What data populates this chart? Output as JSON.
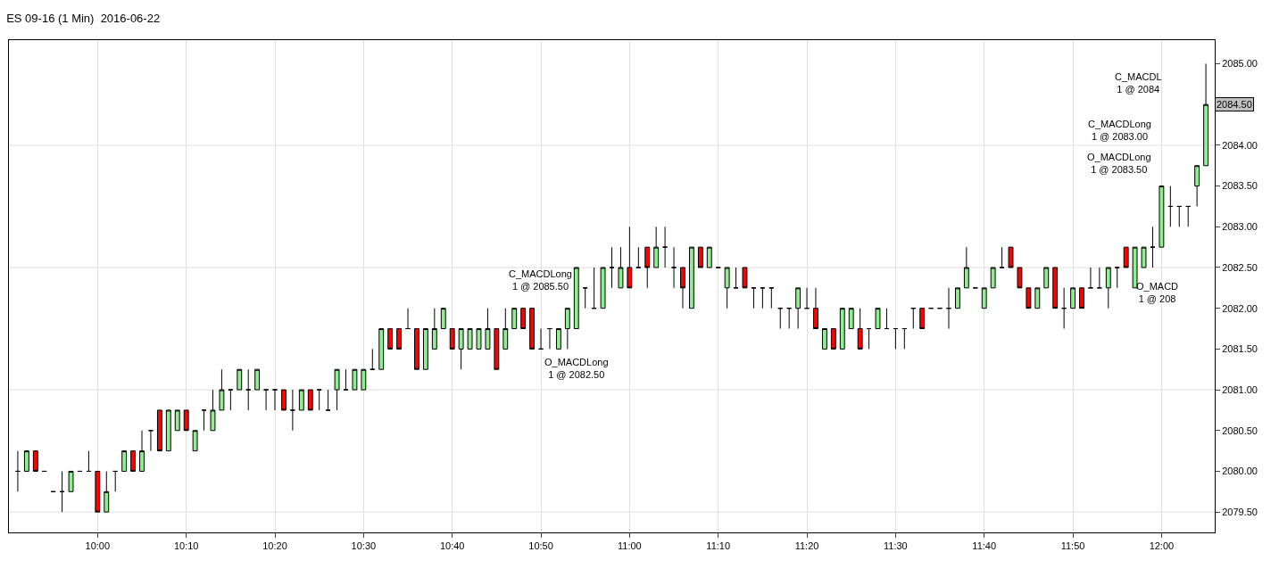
{
  "chart_data": {
    "type": "candlestick",
    "title": "ES 09-16 (1 Min)  2016-06-22",
    "colors": [
      "#000000",
      "#90ee90",
      "#ff0000",
      "#000000",
      "#000000",
      "#000000",
      "#90ee90",
      "#000000",
      "#000000",
      "#ff0000",
      "#90ee90",
      "#000000",
      "#90ee90",
      "#ff0000",
      "#90ee90",
      "#000000",
      "#ff0000",
      "#90ee90",
      "#90ee90",
      "#ff0000",
      "#90ee90",
      "#000000",
      "#90ee90",
      "#90ee90",
      "#000000",
      "#90ee90",
      "#000000",
      "#90ee90",
      "#000000",
      "#000000",
      "#ff0000",
      "#000000",
      "#90ee90",
      "#ff0000",
      "#000000",
      "#000000",
      "#90ee90",
      "#000000",
      "#90ee90",
      "#90ee90",
      "#000000",
      "#90ee90",
      "#ff0000",
      "#ff0000",
      "#000000",
      "#ff0000",
      "#90ee90",
      "#90ee90",
      "#90ee90",
      "#ff0000",
      "#90ee90",
      "#90ee90",
      "#90ee90",
      "#90ee90",
      "#ff0000",
      "#90ee90",
      "#90ee90",
      "#ff0000",
      "#ff0000",
      "#000000",
      "#000000",
      "#90ee90",
      "#90ee90",
      "#90ee90",
      "#000000",
      "#000000",
      "#90ee90",
      "#000000",
      "#90ee90",
      "#ff0000",
      "#000000",
      "#ff0000",
      "#90ee90",
      "#000000",
      "#000000",
      "#ff0000",
      "#90ee90",
      "#ff0000",
      "#90ee90",
      "#000000",
      "#90ee90",
      "#000000",
      "#ff0000",
      "#000000",
      "#000000",
      "#000000",
      "#000000",
      "#000000",
      "#90ee90",
      "#000000",
      "#ff0000",
      "#90ee90",
      "#ff0000",
      "#90ee90",
      "#90ee90",
      "#ff0000",
      "#000000",
      "#90ee90",
      "#000000",
      "#000000",
      "#000000",
      "#000000",
      "#ff0000",
      "#000000",
      "#000000",
      "#000000",
      "#90ee90",
      "#90ee90",
      "#000000",
      "#90ee90",
      "#90ee90",
      "#000000",
      "#ff0000",
      "#ff0000",
      "#ff0000",
      "#90ee90",
      "#90ee90",
      "#ff0000",
      "#000000",
      "#90ee90",
      "#ff0000",
      "#000000",
      "#000000",
      "#90ee90",
      "#000000",
      "#ff0000",
      "#90ee90",
      "#90ee90",
      "#000000",
      "#90ee90",
      "#000000",
      "#000000",
      "#000000",
      "#90ee90",
      "#90ee90"
    ],
    "x": [
      "2016-06-22T09:51",
      "2016-06-22T09:52",
      "2016-06-22T09:53",
      "2016-06-22T09:54",
      "2016-06-22T09:55",
      "2016-06-22T09:56",
      "2016-06-22T09:57",
      "2016-06-22T09:58",
      "2016-06-22T09:59",
      "2016-06-22T10:00",
      "2016-06-22T10:01",
      "2016-06-22T10:02",
      "2016-06-22T10:03",
      "2016-06-22T10:04",
      "2016-06-22T10:05",
      "2016-06-22T10:06",
      "2016-06-22T10:07",
      "2016-06-22T10:08",
      "2016-06-22T10:09",
      "2016-06-22T10:10",
      "2016-06-22T10:11",
      "2016-06-22T10:12",
      "2016-06-22T10:13",
      "2016-06-22T10:14",
      "2016-06-22T10:15",
      "2016-06-22T10:16",
      "2016-06-22T10:17",
      "2016-06-22T10:18",
      "2016-06-22T10:19",
      "2016-06-22T10:20",
      "2016-06-22T10:21",
      "2016-06-22T10:22",
      "2016-06-22T10:23",
      "2016-06-22T10:24",
      "2016-06-22T10:25",
      "2016-06-22T10:26",
      "2016-06-22T10:27",
      "2016-06-22T10:28",
      "2016-06-22T10:29",
      "2016-06-22T10:30",
      "2016-06-22T10:31",
      "2016-06-22T10:32",
      "2016-06-22T10:33",
      "2016-06-22T10:34",
      "2016-06-22T10:35",
      "2016-06-22T10:36",
      "2016-06-22T10:37",
      "2016-06-22T10:38",
      "2016-06-22T10:39",
      "2016-06-22T10:40",
      "2016-06-22T10:41",
      "2016-06-22T10:42",
      "2016-06-22T10:43",
      "2016-06-22T10:44",
      "2016-06-22T10:45",
      "2016-06-22T10:46",
      "2016-06-22T10:47",
      "2016-06-22T10:48",
      "2016-06-22T10:49",
      "2016-06-22T10:50",
      "2016-06-22T10:51",
      "2016-06-22T10:52",
      "2016-06-22T10:53",
      "2016-06-22T10:54",
      "2016-06-22T10:55",
      "2016-06-22T10:56",
      "2016-06-22T10:57",
      "2016-06-22T10:58",
      "2016-06-22T10:59",
      "2016-06-22T11:00",
      "2016-06-22T11:01",
      "2016-06-22T11:02",
      "2016-06-22T11:03",
      "2016-06-22T11:04",
      "2016-06-22T11:05",
      "2016-06-22T11:06",
      "2016-06-22T11:07",
      "2016-06-22T11:08",
      "2016-06-22T11:09",
      "2016-06-22T11:10",
      "2016-06-22T11:11",
      "2016-06-22T11:12",
      "2016-06-22T11:13",
      "2016-06-22T11:14",
      "2016-06-22T11:15",
      "2016-06-22T11:16",
      "2016-06-22T11:17",
      "2016-06-22T11:18",
      "2016-06-22T11:19",
      "2016-06-22T11:20",
      "2016-06-22T11:21",
      "2016-06-22T11:22",
      "2016-06-22T11:23",
      "2016-06-22T11:24",
      "2016-06-22T11:25",
      "2016-06-22T11:26",
      "2016-06-22T11:27",
      "2016-06-22T11:28",
      "2016-06-22T11:29",
      "2016-06-22T11:30",
      "2016-06-22T11:31",
      "2016-06-22T11:32",
      "2016-06-22T11:33",
      "2016-06-22T11:34",
      "2016-06-22T11:35",
      "2016-06-22T11:36",
      "2016-06-22T11:37",
      "2016-06-22T11:38",
      "2016-06-22T11:39",
      "2016-06-22T11:40",
      "2016-06-22T11:41",
      "2016-06-22T11:42",
      "2016-06-22T11:43",
      "2016-06-22T11:44",
      "2016-06-22T11:45",
      "2016-06-22T11:46",
      "2016-06-22T11:47",
      "2016-06-22T11:48",
      "2016-06-22T11:49",
      "2016-06-22T11:50",
      "2016-06-22T11:51",
      "2016-06-22T11:52",
      "2016-06-22T11:53",
      "2016-06-22T11:54",
      "2016-06-22T11:55",
      "2016-06-22T11:56",
      "2016-06-22T11:57",
      "2016-06-22T11:58",
      "2016-06-22T11:59",
      "2016-06-22T12:00",
      "2016-06-22T12:01",
      "2016-06-22T12:02",
      "2016-06-22T12:03",
      "2016-06-22T12:04",
      "2016-06-22T12:05"
    ],
    "ohlc": [
      [
        2080,
        2080.25,
        2079.75,
        2080
      ],
      [
        2080,
        2080.25,
        2080,
        2080.25
      ],
      [
        2080.25,
        2080.25,
        2080,
        2080
      ],
      [
        2080,
        2080,
        2080,
        2080
      ],
      [
        2079.75,
        2079.75,
        2079.75,
        2079.75
      ],
      [
        2079.75,
        2080,
        2079.5,
        2079.75
      ],
      [
        2079.75,
        2080,
        2079.75,
        2080
      ],
      [
        2080,
        2080,
        2080,
        2080
      ],
      [
        2080,
        2080.25,
        2080,
        2080
      ],
      [
        2080,
        2080,
        2079.5,
        2079.5
      ],
      [
        2079.5,
        2080,
        2079.5,
        2079.75
      ],
      [
        2080,
        2080,
        2079.75,
        2080
      ],
      [
        2080,
        2080.25,
        2080,
        2080.25
      ],
      [
        2080.25,
        2080.25,
        2080,
        2080
      ],
      [
        2080,
        2080.5,
        2080,
        2080.25
      ],
      [
        2080.5,
        2080.5,
        2080.25,
        2080.5
      ],
      [
        2080.75,
        2080.75,
        2080.25,
        2080.25
      ],
      [
        2080.25,
        2080.75,
        2080.25,
        2080.75
      ],
      [
        2080.5,
        2080.75,
        2080.5,
        2080.75
      ],
      [
        2080.75,
        2080.75,
        2080.5,
        2080.5
      ],
      [
        2080.25,
        2080.5,
        2080.25,
        2080.5
      ],
      [
        2080.75,
        2080.75,
        2080.5,
        2080.75
      ],
      [
        2080.5,
        2081,
        2080.5,
        2080.75
      ],
      [
        2080.75,
        2081.25,
        2080.75,
        2081
      ],
      [
        2081,
        2081,
        2080.75,
        2081
      ],
      [
        2081,
        2081.25,
        2081,
        2081.25
      ],
      [
        2081,
        2081.25,
        2080.75,
        2081
      ],
      [
        2081,
        2081.25,
        2081,
        2081.25
      ],
      [
        2081,
        2081,
        2080.75,
        2081
      ],
      [
        2081,
        2081,
        2080.75,
        2081
      ],
      [
        2081,
        2081,
        2080.75,
        2080.75
      ],
      [
        2080.75,
        2081,
        2080.5,
        2080.75
      ],
      [
        2080.75,
        2081,
        2080.75,
        2081
      ],
      [
        2081,
        2081,
        2080.75,
        2080.75
      ],
      [
        2081,
        2081,
        2080.75,
        2081
      ],
      [
        2080.75,
        2081,
        2080.75,
        2080.75
      ],
      [
        2081,
        2081.25,
        2080.75,
        2081.25
      ],
      [
        2081,
        2081.25,
        2081,
        2081
      ],
      [
        2081,
        2081.25,
        2081,
        2081.25
      ],
      [
        2081,
        2081.25,
        2081,
        2081.25
      ],
      [
        2081.25,
        2081.5,
        2081.25,
        2081.25
      ],
      [
        2081.25,
        2081.75,
        2081.25,
        2081.75
      ],
      [
        2081.75,
        2081.75,
        2081.5,
        2081.5
      ],
      [
        2081.75,
        2081.75,
        2081.5,
        2081.5
      ],
      [
        2081.75,
        2082,
        2081.75,
        2081.75
      ],
      [
        2081.75,
        2081.75,
        2081.25,
        2081.25
      ],
      [
        2081.25,
        2081.75,
        2081.25,
        2081.75
      ],
      [
        2081.5,
        2082,
        2081.5,
        2081.75
      ],
      [
        2081.75,
        2082,
        2081.75,
        2082
      ],
      [
        2081.75,
        2081.75,
        2081.5,
        2081.5
      ],
      [
        2081.5,
        2081.75,
        2081.25,
        2081.75
      ],
      [
        2081.5,
        2081.75,
        2081.5,
        2081.75
      ],
      [
        2081.5,
        2081.75,
        2081.5,
        2081.75
      ],
      [
        2081.5,
        2082,
        2081.5,
        2081.75
      ],
      [
        2081.75,
        2081.75,
        2081.25,
        2081.25
      ],
      [
        2081.5,
        2082,
        2081.5,
        2081.75
      ],
      [
        2081.75,
        2082,
        2081.75,
        2082
      ],
      [
        2082,
        2082,
        2081.75,
        2081.75
      ],
      [
        2082,
        2082,
        2081.5,
        2081.5
      ],
      [
        2081.5,
        2081.75,
        2081.5,
        2081.5
      ],
      [
        2081.75,
        2081.75,
        2081.5,
        2081.75
      ],
      [
        2081.5,
        2081.75,
        2081.5,
        2081.75
      ],
      [
        2081.75,
        2082,
        2081.5,
        2082
      ],
      [
        2081.75,
        2082.5,
        2081.75,
        2082.5
      ],
      [
        2082.25,
        2082.25,
        2082,
        2082.25
      ],
      [
        2082,
        2082.5,
        2082,
        2082
      ],
      [
        2082,
        2082.5,
        2082,
        2082.5
      ],
      [
        2082.5,
        2082.75,
        2082.25,
        2082.5
      ],
      [
        2082.25,
        2082.75,
        2082.25,
        2082.5
      ],
      [
        2082.5,
        2083,
        2082.25,
        2082.25
      ],
      [
        2082.5,
        2082.75,
        2082.5,
        2082.5
      ],
      [
        2082.75,
        2082.75,
        2082.25,
        2082.5
      ],
      [
        2082.5,
        2083,
        2082.5,
        2082.75
      ],
      [
        2082.75,
        2083,
        2082.5,
        2082.75
      ],
      [
        2082.5,
        2082.75,
        2082.25,
        2082.5
      ],
      [
        2082.5,
        2082.5,
        2082,
        2082.25
      ],
      [
        2082,
        2082.75,
        2082,
        2082.75
      ],
      [
        2082.75,
        2082.75,
        2082.5,
        2082.5
      ],
      [
        2082.5,
        2082.75,
        2082.5,
        2082.75
      ],
      [
        2082.5,
        2082.5,
        2082.5,
        2082.5
      ],
      [
        2082.25,
        2082.5,
        2082,
        2082.5
      ],
      [
        2082.25,
        2082.5,
        2082.25,
        2082.25
      ],
      [
        2082.5,
        2082.5,
        2082.25,
        2082.25
      ],
      [
        2082.25,
        2082.25,
        2082,
        2082.25
      ],
      [
        2082.25,
        2082.25,
        2082,
        2082.25
      ],
      [
        2082.25,
        2082.25,
        2082,
        2082.25
      ],
      [
        2082,
        2082,
        2081.75,
        2082
      ],
      [
        2082,
        2082,
        2081.75,
        2082
      ],
      [
        2082,
        2082.25,
        2081.75,
        2082.25
      ],
      [
        2082,
        2082.25,
        2082,
        2082
      ],
      [
        2082,
        2082.25,
        2081.75,
        2081.75
      ],
      [
        2081.5,
        2081.75,
        2081.5,
        2081.75
      ],
      [
        2081.75,
        2081.75,
        2081.5,
        2081.5
      ],
      [
        2081.5,
        2082,
        2081.5,
        2082
      ],
      [
        2081.75,
        2082,
        2081.75,
        2082
      ],
      [
        2081.75,
        2082,
        2081.5,
        2081.5
      ],
      [
        2081.75,
        2081.75,
        2081.5,
        2081.75
      ],
      [
        2081.75,
        2082,
        2081.75,
        2082
      ],
      [
        2081.75,
        2082,
        2081.75,
        2081.75
      ],
      [
        2081.75,
        2081.75,
        2081.5,
        2081.75
      ],
      [
        2081.75,
        2081.75,
        2081.5,
        2081.75
      ],
      [
        2082,
        2082,
        2081.75,
        2082
      ],
      [
        2082,
        2082,
        2081.75,
        2081.75
      ],
      [
        2082,
        2082,
        2082,
        2082
      ],
      [
        2082,
        2082,
        2082,
        2082
      ],
      [
        2082,
        2082.25,
        2081.75,
        2082
      ],
      [
        2082,
        2082.25,
        2082,
        2082.25
      ],
      [
        2082.25,
        2082.75,
        2082.25,
        2082.5
      ],
      [
        2082.25,
        2082.25,
        2082.25,
        2082.25
      ],
      [
        2082,
        2082.25,
        2082,
        2082.25
      ],
      [
        2082.25,
        2082.5,
        2082.25,
        2082.5
      ],
      [
        2082.5,
        2082.75,
        2082.5,
        2082.5
      ],
      [
        2082.75,
        2082.75,
        2082.5,
        2082.5
      ],
      [
        2082.5,
        2082.5,
        2082.25,
        2082.25
      ],
      [
        2082.25,
        2082.25,
        2082,
        2082
      ],
      [
        2082,
        2082.25,
        2082,
        2082.25
      ],
      [
        2082.25,
        2082.5,
        2082.25,
        2082.5
      ],
      [
        2082.5,
        2082.5,
        2082,
        2082
      ],
      [
        2082,
        2082.25,
        2081.75,
        2082
      ],
      [
        2082,
        2082.25,
        2082,
        2082.25
      ],
      [
        2082.25,
        2082.25,
        2082,
        2082
      ],
      [
        2082.25,
        2082.5,
        2082.25,
        2082.25
      ],
      [
        2082.25,
        2082.5,
        2082.25,
        2082.25
      ],
      [
        2082.25,
        2082.5,
        2082,
        2082.5
      ],
      [
        2082.5,
        2082.5,
        2082.25,
        2082.5
      ],
      [
        2082.75,
        2082.75,
        2082.5,
        2082.5
      ],
      [
        2082.25,
        2082.75,
        2082.25,
        2082.75
      ],
      [
        2082.5,
        2082.75,
        2082.5,
        2082.75
      ],
      [
        2082.75,
        2083,
        2082.5,
        2082.75
      ],
      [
        2082.75,
        2083.5,
        2082.75,
        2083.5
      ],
      [
        2083.25,
        2083.5,
        2083,
        2083.25
      ],
      [
        2083.25,
        2083.25,
        2083,
        2083.25
      ],
      [
        2083.25,
        2083.25,
        2083,
        2083.25
      ],
      [
        2083.5,
        2083.75,
        2083.25,
        2083.75
      ],
      [
        2083.75,
        2085,
        2083.75,
        2084.5
      ]
    ],
    "xlim": [
      "2016-06-22T09:50",
      "2016-06-22T12:06"
    ],
    "xticks": [
      {
        "value": "2016-06-22T10:00",
        "label": "10:00"
      },
      {
        "value": "2016-06-22T10:10",
        "label": "10:10"
      },
      {
        "value": "2016-06-22T10:20",
        "label": "10:20"
      },
      {
        "value": "2016-06-22T10:30",
        "label": "10:30"
      },
      {
        "value": "2016-06-22T10:40",
        "label": "10:40"
      },
      {
        "value": "2016-06-22T10:50",
        "label": "10:50"
      },
      {
        "value": "2016-06-22T11:00",
        "label": "11:00"
      },
      {
        "value": "2016-06-22T11:10",
        "label": "11:10"
      },
      {
        "value": "2016-06-22T11:20",
        "label": "11:20"
      },
      {
        "value": "2016-06-22T11:30",
        "label": "11:30"
      },
      {
        "value": "2016-06-22T11:40",
        "label": "11:40"
      },
      {
        "value": "2016-06-22T11:50",
        "label": "11:50"
      },
      {
        "value": "2016-06-22T12:00",
        "label": "12:00"
      }
    ],
    "ylim": [
      2079.25,
      2085.29
    ],
    "yticks": [
      {
        "value": 2079.5,
        "label": "2079.50"
      },
      {
        "value": 2080,
        "label": "2080.00"
      },
      {
        "value": 2080.5,
        "label": "2080.50"
      },
      {
        "value": 2081,
        "label": "2081.00"
      },
      {
        "value": 2081.5,
        "label": "2081.50"
      },
      {
        "value": 2082,
        "label": "2082.00"
      },
      {
        "value": 2082.5,
        "label": "2082.50"
      },
      {
        "value": 2083,
        "label": "2083.00"
      },
      {
        "value": 2083.5,
        "label": "2083.50"
      },
      {
        "value": 2084,
        "label": "2084.00"
      },
      {
        "value": 2084.5,
        "label": null
      },
      {
        "value": 2085,
        "label": "2085.00"
      }
    ],
    "grid": "x",
    "ref_lines": [
      {
        "axis": "y",
        "value": 2079.5,
        "color": "#e0e0e0"
      },
      {
        "axis": "y",
        "value": 2081,
        "color": "#e0e0e0"
      },
      {
        "axis": "y",
        "value": 2082.5,
        "color": "#e0e0e0"
      },
      {
        "axis": "y",
        "value": 2084,
        "color": "#e0e0e0"
      }
    ],
    "annotations": [
      "C_MACDLong\n1 @ 2085.50",
      "O_MACDLong\n1 @ 2082.50",
      "C_MACDLong\n1 @ 2083.00",
      "O_MACDLong\n1 @ 2083.50",
      "C_MACDL\n1 @ 2084",
      "O_MACD\n1 @ 208",
      {
        "text": "2084.50",
        "y": 2084.5
      }
    ]
  }
}
